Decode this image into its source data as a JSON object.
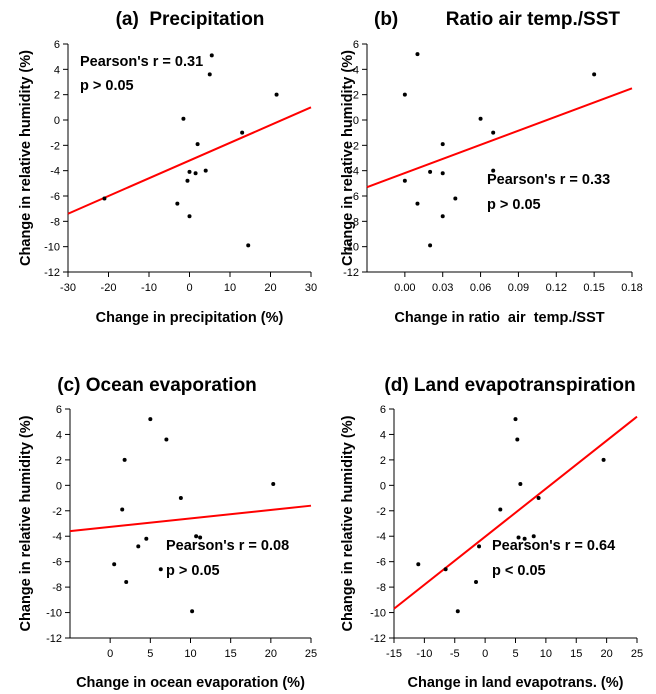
{
  "chart_data": [
    {
      "type": "scatter",
      "title": "(a)  Precipitation",
      "xlabel": "Change in precipitation (%)",
      "ylabel": "Change in relative humidity (%)",
      "xlim": [
        -30,
        30
      ],
      "ylim": [
        -12,
        6
      ],
      "xticks": [
        "-30",
        "-20",
        "-10",
        "0",
        "10",
        "20",
        "30"
      ],
      "yticks": [
        "-12",
        "-10",
        "-8",
        "-6",
        "-4",
        "-2",
        "0",
        "2",
        "4",
        "6"
      ],
      "points": [
        {
          "x": -21,
          "y": -6.2
        },
        {
          "x": -3,
          "y": -6.6
        },
        {
          "x": -1.5,
          "y": 0.1
        },
        {
          "x": -0.5,
          "y": -4.8
        },
        {
          "x": 0,
          "y": -4.1
        },
        {
          "x": 0,
          "y": -7.6
        },
        {
          "x": 1.5,
          "y": -4.2
        },
        {
          "x": 2,
          "y": -1.9
        },
        {
          "x": 4,
          "y": -4.0
        },
        {
          "x": 5,
          "y": 3.6
        },
        {
          "x": 5.5,
          "y": 5.1
        },
        {
          "x": 13,
          "y": -1.0
        },
        {
          "x": 14.5,
          "y": -9.9
        },
        {
          "x": 21.5,
          "y": 2.0
        }
      ],
      "fit_line": {
        "x": [
          -30,
          30
        ],
        "y": [
          -7.4,
          1.0
        ],
        "color": "#ff0000"
      },
      "annotations": [
        "Pearson's r = 0.31",
        "p > 0.05"
      ],
      "annotation_pos": "top-left"
    },
    {
      "type": "scatter",
      "title": "(b)         Ratio air temp./SST",
      "xlabel": "Change in ratio  air  temp./SST",
      "ylabel": "Change in relative humidity (%)",
      "xlim": [
        -0.03,
        0.18
      ],
      "ylim": [
        -12,
        6
      ],
      "xticks": [
        "0.00",
        "0.03",
        "0.06",
        "0.09",
        "0.12",
        "0.15",
        "0.18"
      ],
      "yticks": [
        "-12",
        "-10",
        "-8",
        "-6",
        "-4",
        "-2",
        "0",
        "2",
        "4",
        "6"
      ],
      "points": [
        {
          "x": 0.0,
          "y": 2.0
        },
        {
          "x": 0.0,
          "y": -4.8
        },
        {
          "x": 0.01,
          "y": 5.2
        },
        {
          "x": 0.01,
          "y": -6.6
        },
        {
          "x": 0.02,
          "y": -4.1
        },
        {
          "x": 0.02,
          "y": -9.9
        },
        {
          "x": 0.03,
          "y": -1.9
        },
        {
          "x": 0.03,
          "y": -4.2
        },
        {
          "x": 0.03,
          "y": -7.6
        },
        {
          "x": 0.04,
          "y": -6.2
        },
        {
          "x": 0.06,
          "y": 0.1
        },
        {
          "x": 0.07,
          "y": -1.0
        },
        {
          "x": 0.07,
          "y": -4.0
        },
        {
          "x": 0.15,
          "y": 3.6
        }
      ],
      "fit_line": {
        "x": [
          -0.03,
          0.18
        ],
        "y": [
          -5.3,
          2.5
        ],
        "color": "#ff0000"
      },
      "annotations": [
        "Pearson's r = 0.33",
        "p > 0.05"
      ],
      "annotation_pos": "bottom-right"
    },
    {
      "type": "scatter",
      "title": "(c) Ocean evaporation",
      "xlabel": "Change in ocean evaporation (%)",
      "ylabel": "Change in relative humidity (%)",
      "xlim": [
        -5,
        25
      ],
      "ylim": [
        -12,
        6
      ],
      "xticks": [
        "0",
        "5",
        "10",
        "15",
        "20",
        "25"
      ],
      "yticks": [
        "-12",
        "-10",
        "-8",
        "-6",
        "-4",
        "-2",
        "0",
        "2",
        "4",
        "6"
      ],
      "points": [
        {
          "x": 0.5,
          "y": -6.2
        },
        {
          "x": 1.5,
          "y": -1.9
        },
        {
          "x": 1.8,
          "y": 2.0
        },
        {
          "x": 2.0,
          "y": -7.6
        },
        {
          "x": 3.5,
          "y": -4.8
        },
        {
          "x": 4.5,
          "y": -4.2
        },
        {
          "x": 5.0,
          "y": 5.2
        },
        {
          "x": 6.3,
          "y": -6.6
        },
        {
          "x": 7.0,
          "y": 3.6
        },
        {
          "x": 8.8,
          "y": -1.0
        },
        {
          "x": 10.2,
          "y": -9.9
        },
        {
          "x": 10.7,
          "y": -4.0
        },
        {
          "x": 11.2,
          "y": -4.1
        },
        {
          "x": 20.3,
          "y": 0.1
        }
      ],
      "fit_line": {
        "x": [
          -5,
          25
        ],
        "y": [
          -3.6,
          -1.6
        ],
        "color": "#ff0000"
      },
      "annotations": [
        "Pearson's r = 0.08",
        "p > 0.05"
      ],
      "annotation_pos": "bottom-right"
    },
    {
      "type": "scatter",
      "title": "(d) Land evapotranspiration",
      "xlabel": "Change in land evapotrans. (%)",
      "ylabel": "Change in relative humidity (%)",
      "xlim": [
        -15,
        25
      ],
      "ylim": [
        -12,
        6
      ],
      "xticks": [
        "-15",
        "-10",
        "-5",
        "0",
        "5",
        "10",
        "15",
        "20",
        "25"
      ],
      "yticks": [
        "-12",
        "-10",
        "-8",
        "-6",
        "-4",
        "-2",
        "0",
        "2",
        "4",
        "6"
      ],
      "points": [
        {
          "x": -11,
          "y": -6.2
        },
        {
          "x": -6.5,
          "y": -6.6
        },
        {
          "x": -4.5,
          "y": -9.9
        },
        {
          "x": -1.5,
          "y": -7.6
        },
        {
          "x": -1.0,
          "y": -4.8
        },
        {
          "x": 2.5,
          "y": -1.9
        },
        {
          "x": 5.0,
          "y": 5.2
        },
        {
          "x": 5.3,
          "y": 3.6
        },
        {
          "x": 5.5,
          "y": -4.1
        },
        {
          "x": 5.8,
          "y": 0.1
        },
        {
          "x": 6.5,
          "y": -4.2
        },
        {
          "x": 8.0,
          "y": -4.0
        },
        {
          "x": 8.8,
          "y": -1.0
        },
        {
          "x": 19.5,
          "y": 2.0
        }
      ],
      "fit_line": {
        "x": [
          -15,
          25
        ],
        "y": [
          -9.7,
          5.4
        ],
        "color": "#ff0000"
      },
      "annotations": [
        "Pearson's r = 0.64",
        "p < 0.05"
      ],
      "annotation_pos": "bottom-right"
    }
  ]
}
